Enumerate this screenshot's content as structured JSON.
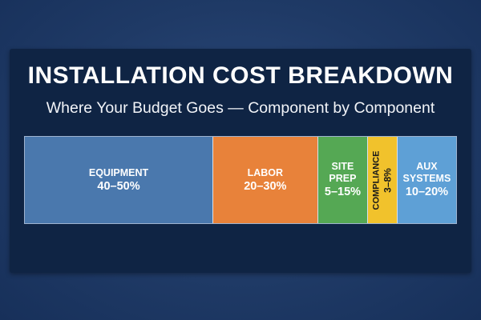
{
  "title": "INSTALLATION COST BREAKDOWN",
  "subtitle": "Where Your Budget Goes — Component by Component",
  "colors": {
    "background": "#1f3a66",
    "panel": "#0f2444",
    "equipment": "#4a78ad",
    "labor": "#e8823a",
    "site_prep": "#55a854",
    "compliance": "#f1c22c",
    "aux_systems": "#5ea0d6"
  },
  "chart_data": {
    "type": "bar",
    "orientation": "stacked-horizontal",
    "categories": [
      "EQUIPMENT",
      "LABOR",
      "SITE PREP",
      "COMPLIANCE",
      "AUX SYSTEMS"
    ],
    "series": [
      {
        "values": [
          45,
          25,
          12,
          7,
          14
        ],
        "ranges": [
          "40–50%",
          "20–30%",
          "5–15%",
          "3–8%",
          "10–20%"
        ]
      }
    ],
    "data_labels": [
      "40–50%",
      "20–30%",
      "5–15%",
      "3–8%",
      "10–20%"
    ],
    "title": "INSTALLATION COST BREAKDOWN",
    "subtitle": "Where Your Budget Goes — Component by Component",
    "xlabel": "",
    "ylabel": "",
    "grid": false,
    "legend": "none"
  }
}
